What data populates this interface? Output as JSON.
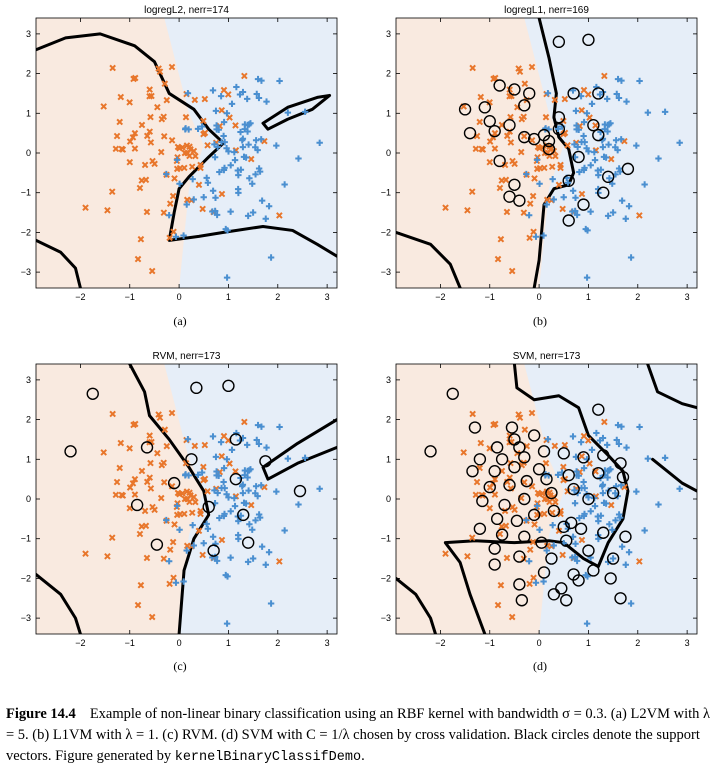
{
  "figure": {
    "caption_label": "Figure 14.4",
    "caption_text": "Example of non-linear binary classification using an RBF kernel with bandwidth σ = 0.3. (a) L2VM with λ = 5. (b) L1VM with λ = 1. (c) RVM. (d) SVM with C = 1/λ chosen by cross validation. Black circles denote the support vectors. Figure generated by",
    "caption_code": "kernelBinaryClassifDemo",
    "caption_end": "."
  },
  "colors": {
    "class_x": "#e8762b",
    "class_plus": "#4a8fd0",
    "region_x": "#fbe9dd",
    "region_plus": "#e6eef8",
    "boundary": "#000000",
    "support_circle": "#000000"
  },
  "chart_data": [
    {
      "type": "scatter",
      "panel": "(a)",
      "title": "logregL2, nerr=174",
      "xlim": [
        -2.9,
        3.2
      ],
      "ylim": [
        -3.4,
        3.4
      ],
      "xticks": [
        -2,
        -1,
        0,
        1,
        2,
        3
      ],
      "yticks": [
        -3,
        -2,
        -1,
        0,
        1,
        2,
        3
      ],
      "grid": false,
      "support_vectors": []
    },
    {
      "type": "scatter",
      "panel": "(b)",
      "title": "logregL1, nerr=169",
      "xlim": [
        -2.9,
        3.2
      ],
      "ylim": [
        -3.4,
        3.4
      ],
      "xticks": [
        -2,
        -1,
        0,
        1,
        2,
        3
      ],
      "yticks": [
        -3,
        -2,
        -1,
        0,
        1,
        2,
        3
      ],
      "grid": false,
      "support_vectors": [
        [
          1.0,
          2.85
        ],
        [
          0.4,
          2.8
        ],
        [
          -0.8,
          1.7
        ],
        [
          -0.5,
          1.6
        ],
        [
          -0.2,
          1.5
        ],
        [
          0.7,
          1.5
        ],
        [
          1.2,
          1.5
        ],
        [
          -1.5,
          1.1
        ],
        [
          -1.1,
          1.15
        ],
        [
          -0.3,
          1.2
        ],
        [
          0.4,
          0.9
        ],
        [
          -1.0,
          0.8
        ],
        [
          -0.6,
          0.7
        ],
        [
          0.1,
          0.45
        ],
        [
          0.4,
          0.6
        ],
        [
          1.1,
          0.7
        ],
        [
          1.2,
          0.45
        ],
        [
          -1.4,
          0.5
        ],
        [
          -0.9,
          0.55
        ],
        [
          -0.3,
          0.4
        ],
        [
          -0.1,
          0.35
        ],
        [
          0.2,
          0.3
        ],
        [
          -0.8,
          -0.2
        ],
        [
          0.8,
          -0.1
        ],
        [
          1.8,
          -0.4
        ],
        [
          -0.5,
          -0.8
        ],
        [
          0.6,
          -0.7
        ],
        [
          1.4,
          -0.6
        ],
        [
          -0.4,
          -1.2
        ],
        [
          0.9,
          -1.3
        ],
        [
          -0.6,
          -1.1
        ],
        [
          0.6,
          -1.7
        ],
        [
          1.3,
          -1.0
        ],
        [
          0.2,
          0.1
        ]
      ]
    },
    {
      "type": "scatter",
      "panel": "(c)",
      "title": "RVM, nerr=173",
      "xlim": [
        -2.9,
        3.2
      ],
      "ylim": [
        -3.4,
        3.4
      ],
      "xticks": [
        -2,
        -1,
        0,
        1,
        2,
        3
      ],
      "yticks": [
        -3,
        -2,
        -1,
        0,
        1,
        2,
        3
      ],
      "grid": false,
      "support_vectors": [
        [
          -1.75,
          2.65
        ],
        [
          0.35,
          2.8
        ],
        [
          1.0,
          2.85
        ],
        [
          -2.2,
          1.2
        ],
        [
          -0.65,
          1.3
        ],
        [
          1.15,
          1.5
        ],
        [
          0.25,
          1.0
        ],
        [
          1.75,
          0.95
        ],
        [
          -0.1,
          0.4
        ],
        [
          1.15,
          0.5
        ],
        [
          2.45,
          0.2
        ],
        [
          -0.85,
          -0.15
        ],
        [
          0.6,
          -0.2
        ],
        [
          1.3,
          -0.4
        ],
        [
          -0.45,
          -1.15
        ],
        [
          0.7,
          -1.3
        ],
        [
          1.4,
          -1.1
        ]
      ]
    },
    {
      "type": "scatter",
      "panel": "(d)",
      "title": "SVM, nerr=173",
      "xlim": [
        -2.9,
        3.2
      ],
      "ylim": [
        -3.4,
        3.4
      ],
      "xticks": [
        -2,
        -1,
        0,
        1,
        2,
        3
      ],
      "yticks": [
        -3,
        -2,
        -1,
        0,
        1,
        2,
        3
      ],
      "grid": false,
      "support_vectors": [
        [
          -1.75,
          2.65
        ],
        [
          -2.2,
          1.2
        ],
        [
          1.2,
          2.25
        ],
        [
          -1.3,
          1.8
        ],
        [
          -0.55,
          1.8
        ],
        [
          -0.5,
          1.5
        ],
        [
          -0.1,
          1.6
        ],
        [
          -0.85,
          1.3
        ],
        [
          -0.4,
          1.3
        ],
        [
          -1.2,
          1.0
        ],
        [
          -0.75,
          1.0
        ],
        [
          -0.3,
          1.05
        ],
        [
          0.1,
          1.2
        ],
        [
          -1.35,
          0.7
        ],
        [
          -0.9,
          0.7
        ],
        [
          -0.5,
          0.8
        ],
        [
          0.0,
          0.75
        ],
        [
          0.5,
          1.15
        ],
        [
          0.9,
          1.05
        ],
        [
          1.3,
          1.1
        ],
        [
          1.65,
          0.9
        ],
        [
          -1.0,
          0.3
        ],
        [
          -0.6,
          0.35
        ],
        [
          -0.25,
          0.45
        ],
        [
          0.15,
          0.5
        ],
        [
          0.6,
          0.6
        ],
        [
          1.2,
          0.65
        ],
        [
          1.7,
          0.55
        ],
        [
          -1.15,
          -0.05
        ],
        [
          -0.7,
          -0.15
        ],
        [
          -0.3,
          0.0
        ],
        [
          0.25,
          0.15
        ],
        [
          0.7,
          0.25
        ],
        [
          1.0,
          0.0
        ],
        [
          1.5,
          0.15
        ],
        [
          -0.85,
          -0.5
        ],
        [
          -0.45,
          -0.55
        ],
        [
          -0.1,
          -0.4
        ],
        [
          0.3,
          -0.3
        ],
        [
          0.65,
          -0.6
        ],
        [
          -1.2,
          -0.75
        ],
        [
          -0.75,
          -0.9
        ],
        [
          -0.3,
          -0.95
        ],
        [
          0.05,
          -1.1
        ],
        [
          0.5,
          -0.7
        ],
        [
          0.85,
          -0.75
        ],
        [
          1.3,
          -0.85
        ],
        [
          1.75,
          -0.95
        ],
        [
          -0.9,
          -1.25
        ],
        [
          -0.4,
          -1.45
        ],
        [
          0.25,
          -1.5
        ],
        [
          0.55,
          -1.05
        ],
        [
          1.0,
          -1.3
        ],
        [
          1.5,
          -1.5
        ],
        [
          -0.9,
          -1.65
        ],
        [
          0.1,
          -1.85
        ],
        [
          0.7,
          -1.9
        ],
        [
          1.1,
          -1.8
        ],
        [
          -0.4,
          -2.15
        ],
        [
          0.45,
          -2.25
        ],
        [
          1.45,
          -2.0
        ],
        [
          -0.35,
          -2.55
        ],
        [
          0.55,
          -2.55
        ],
        [
          0.8,
          -2.05
        ],
        [
          1.65,
          -2.5
        ],
        [
          0.3,
          -2.4
        ]
      ]
    }
  ]
}
